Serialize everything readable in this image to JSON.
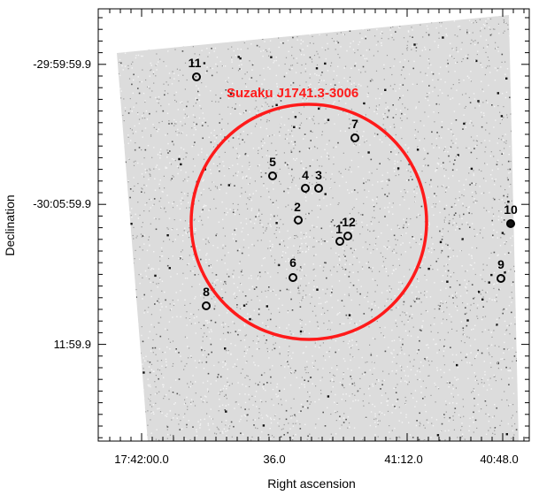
{
  "figure": {
    "region_label": "Suzaku J1741.3-3006",
    "region_color": "#ff1a1a",
    "axes": {
      "xlabel": "Right ascension",
      "ylabel": "Declination",
      "x_ticks": [
        "17:42:00.0",
        "36.0",
        "41:12.0",
        "40:48.0"
      ],
      "y_ticks": [
        "-29:59:59.9",
        "-30:05:59.9",
        "11:59.9"
      ]
    },
    "sources": [
      {
        "id": "1",
        "label": "1"
      },
      {
        "id": "2",
        "label": "2"
      },
      {
        "id": "3",
        "label": "3"
      },
      {
        "id": "4",
        "label": "4"
      },
      {
        "id": "5",
        "label": "5"
      },
      {
        "id": "6",
        "label": "6"
      },
      {
        "id": "7",
        "label": "7"
      },
      {
        "id": "8",
        "label": "8"
      },
      {
        "id": "9",
        "label": "9"
      },
      {
        "id": "10",
        "label": "10"
      },
      {
        "id": "11",
        "label": "11"
      },
      {
        "id": "12",
        "label": "12"
      }
    ]
  }
}
